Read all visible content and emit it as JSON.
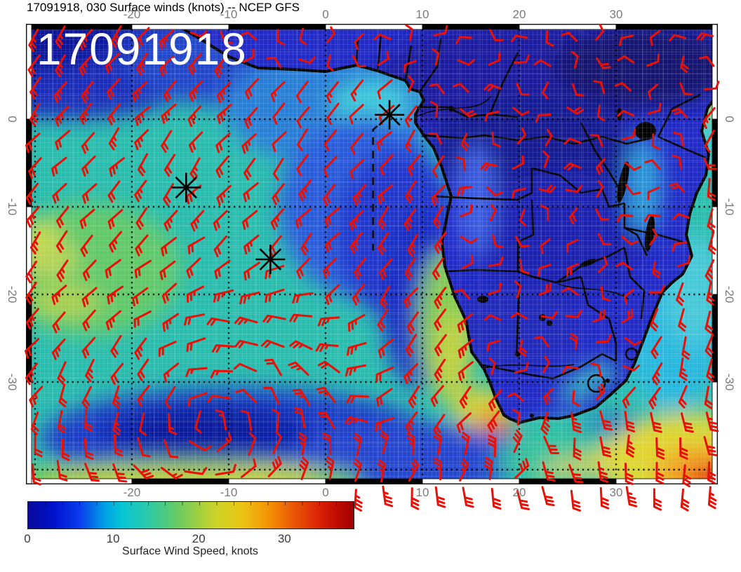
{
  "title": "17091918, 030 Surface winds (knots) -- NCEP GFS",
  "stamp": "17091918",
  "axes": {
    "lon_labels": [
      -20,
      -10,
      0,
      10,
      20,
      30
    ],
    "lat_labels": [
      0,
      -10,
      -20,
      -30
    ]
  },
  "colorbar": {
    "label": "Surface Wind Speed, knots",
    "units": "knots",
    "min": 0,
    "max": 38,
    "ticks": [
      0,
      10,
      20,
      30
    ],
    "stops": [
      [
        0,
        "#0a0a9a"
      ],
      [
        3,
        "#0012cc"
      ],
      [
        6,
        "#0a3cee"
      ],
      [
        9,
        "#00a2e4"
      ],
      [
        11,
        "#06c6d4"
      ],
      [
        14,
        "#2cc9a8"
      ],
      [
        17,
        "#5ecb6c"
      ],
      [
        20,
        "#a2d03e"
      ],
      [
        22,
        "#ccd428"
      ],
      [
        25,
        "#ecc414"
      ],
      [
        28,
        "#f49406"
      ],
      [
        31,
        "#ea5606"
      ],
      [
        34,
        "#da2206"
      ],
      [
        36,
        "#c00c04"
      ],
      [
        38,
        "#9e0000"
      ]
    ]
  },
  "chart_data": {
    "type": "map",
    "projection": "equirectangular",
    "region": "Africa and South Atlantic",
    "extent": {
      "lon": [
        -30.9,
        40.4
      ],
      "lat": [
        -41.6,
        10.8
      ]
    },
    "lon_grid": [
      -30,
      -20,
      -10,
      0,
      10,
      20,
      30,
      40
    ],
    "lat_grid": [
      0,
      -10,
      -20,
      -30,
      -40
    ],
    "field": "surface wind speed, knots (filled color) with red wind barbs",
    "model": "NCEP GFS",
    "run_stamp": "17091918",
    "forecast_hour": "030",
    "markers": [
      {
        "name": "asterisk-marker",
        "lon": 6.6,
        "lat": 0.5
      },
      {
        "name": "asterisk-marker",
        "lon": -14.4,
        "lat": -7.8
      },
      {
        "name": "asterisk-marker",
        "lon": -5.7,
        "lat": -16.0
      }
    ],
    "track": [
      [
        6.4,
        0.2
      ],
      [
        4.9,
        -1.2
      ],
      [
        4.9,
        -15.0
      ]
    ],
    "wind_regions": [
      "SE trade winds 10-15 kt over tropical South Atlantic",
      "calm center of South Atlantic High near 12W 35S",
      "strong westerlies along southern edge",
      "35+ kt jet southeast of South Africa (red blob)",
      "light winds over interior southern Africa"
    ],
    "barb_color": "#e81108"
  }
}
